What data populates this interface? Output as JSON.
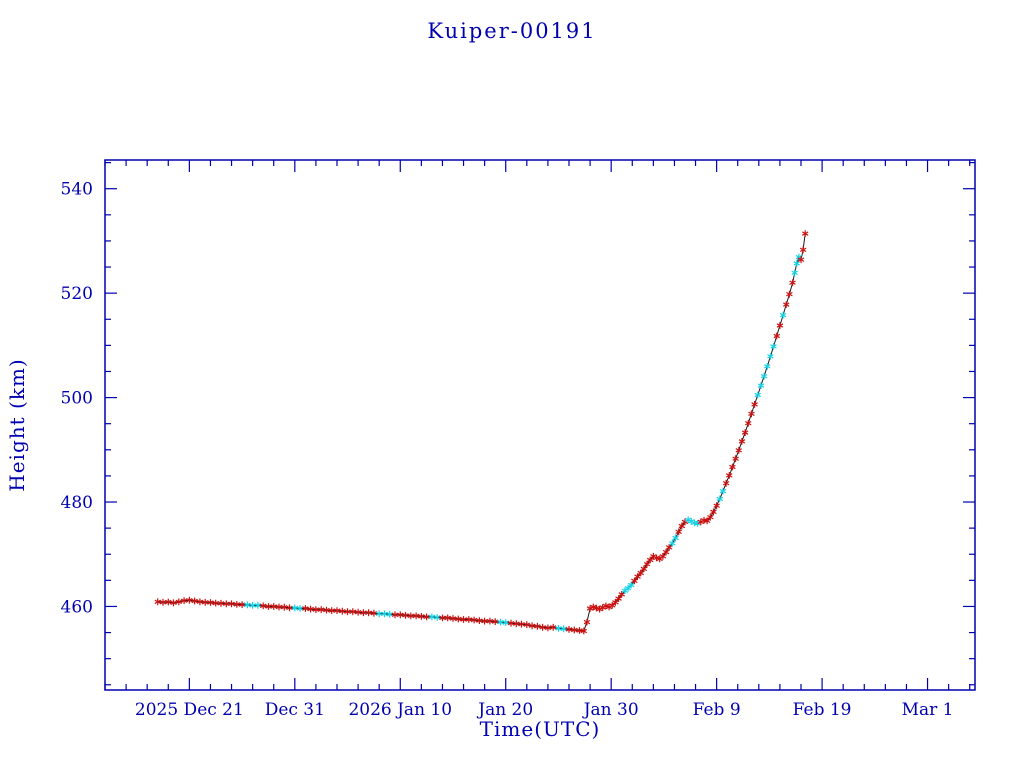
{
  "window": {
    "background": "#ffffff"
  },
  "chart_data": {
    "type": "line",
    "title": "Kuiper-00191",
    "xlabel": "Time(UTC)",
    "ylabel": "Height (km)",
    "axis_color": "#0000b0",
    "line_color": "#1a1a1a",
    "marker": "asterisk",
    "marker_colors": {
      "primary": "#cc1111",
      "secondary": "#17d2e6"
    },
    "x_unit": "days, 0 = 2025 Dec 13",
    "xlim": [
      0,
      82.5
    ],
    "ylim": [
      444,
      545.5
    ],
    "x_minor_step": 2,
    "y_minor_step": 5,
    "x_ticks": [
      {
        "pos": 8,
        "label": "2025 Dec 21"
      },
      {
        "pos": 18,
        "label": "Dec 31"
      },
      {
        "pos": 28,
        "label": "2026 Jan 10"
      },
      {
        "pos": 38,
        "label": "Jan 20"
      },
      {
        "pos": 48,
        "label": "Jan 30"
      },
      {
        "pos": 58,
        "label": "Feb 9"
      },
      {
        "pos": 68,
        "label": "Feb 19"
      },
      {
        "pos": 78,
        "label": "Mar 1"
      }
    ],
    "y_ticks": [
      {
        "pos": 460,
        "label": "460"
      },
      {
        "pos": 480,
        "label": "480"
      },
      {
        "pos": 500,
        "label": "500"
      },
      {
        "pos": 520,
        "label": "520"
      },
      {
        "pos": 540,
        "label": "540"
      }
    ],
    "points": [
      [
        5.0,
        460.9,
        0
      ],
      [
        5.5,
        460.8,
        0
      ],
      [
        6.0,
        460.85,
        0
      ],
      [
        6.5,
        460.7,
        0
      ],
      [
        7.0,
        460.9,
        0
      ],
      [
        7.5,
        461.1,
        0
      ],
      [
        8.0,
        461.2,
        0
      ],
      [
        8.5,
        461.05,
        0
      ],
      [
        9.0,
        460.9,
        0
      ],
      [
        9.5,
        460.8,
        0
      ],
      [
        10.0,
        460.75,
        0
      ],
      [
        10.5,
        460.65,
        0
      ],
      [
        11.0,
        460.6,
        0
      ],
      [
        11.5,
        460.5,
        0
      ],
      [
        12.0,
        460.5,
        0
      ],
      [
        12.5,
        460.4,
        0
      ],
      [
        13.0,
        460.35,
        0
      ],
      [
        13.5,
        460.3,
        1
      ],
      [
        14.0,
        460.2,
        1
      ],
      [
        14.5,
        460.2,
        1
      ],
      [
        15.0,
        460.1,
        0
      ],
      [
        15.5,
        460.0,
        0
      ],
      [
        16.0,
        460.0,
        0
      ],
      [
        16.5,
        459.9,
        0
      ],
      [
        17.0,
        459.85,
        0
      ],
      [
        17.5,
        459.75,
        0
      ],
      [
        18.0,
        459.7,
        1
      ],
      [
        18.5,
        459.6,
        1
      ],
      [
        19.0,
        459.6,
        0
      ],
      [
        19.5,
        459.5,
        0
      ],
      [
        20.0,
        459.4,
        0
      ],
      [
        20.5,
        459.4,
        0
      ],
      [
        21.0,
        459.3,
        0
      ],
      [
        21.5,
        459.2,
        0
      ],
      [
        22.0,
        459.2,
        0
      ],
      [
        22.5,
        459.1,
        0
      ],
      [
        23.0,
        459.0,
        0
      ],
      [
        23.5,
        459.0,
        0
      ],
      [
        24.0,
        458.9,
        0
      ],
      [
        24.5,
        458.8,
        0
      ],
      [
        25.0,
        458.8,
        0
      ],
      [
        25.5,
        458.7,
        0
      ],
      [
        26.0,
        458.6,
        1
      ],
      [
        26.5,
        458.6,
        1
      ],
      [
        27.0,
        458.5,
        1
      ],
      [
        27.5,
        458.4,
        0
      ],
      [
        28.0,
        458.4,
        0
      ],
      [
        28.5,
        458.3,
        0
      ],
      [
        29.0,
        458.2,
        0
      ],
      [
        29.5,
        458.2,
        0
      ],
      [
        30.0,
        458.1,
        0
      ],
      [
        30.5,
        458.0,
        0
      ],
      [
        31.0,
        458.0,
        1
      ],
      [
        31.5,
        457.9,
        1
      ],
      [
        32.0,
        457.8,
        0
      ],
      [
        32.5,
        457.8,
        0
      ],
      [
        33.0,
        457.7,
        0
      ],
      [
        33.5,
        457.6,
        0
      ],
      [
        34.0,
        457.5,
        0
      ],
      [
        34.5,
        457.5,
        0
      ],
      [
        35.0,
        457.4,
        0
      ],
      [
        35.5,
        457.3,
        0
      ],
      [
        36.0,
        457.2,
        0
      ],
      [
        36.5,
        457.2,
        0
      ],
      [
        37.0,
        457.1,
        0
      ],
      [
        37.5,
        457.0,
        1
      ],
      [
        38.0,
        456.9,
        1
      ],
      [
        38.5,
        456.8,
        0
      ],
      [
        39.0,
        456.7,
        0
      ],
      [
        39.5,
        456.6,
        0
      ],
      [
        40.0,
        456.5,
        0
      ],
      [
        40.5,
        456.3,
        0
      ],
      [
        41.0,
        456.2,
        0
      ],
      [
        41.5,
        456.0,
        0
      ],
      [
        42.0,
        455.9,
        0
      ],
      [
        42.5,
        456.0,
        0
      ],
      [
        43.0,
        455.8,
        1
      ],
      [
        43.5,
        455.7,
        1
      ],
      [
        44.0,
        455.6,
        0
      ],
      [
        44.5,
        455.5,
        0
      ],
      [
        45.0,
        455.4,
        0
      ],
      [
        45.4,
        455.3,
        0
      ],
      [
        45.7,
        457.0,
        0
      ],
      [
        46.0,
        459.6,
        0
      ],
      [
        46.3,
        459.9,
        0
      ],
      [
        46.6,
        459.7,
        0
      ],
      [
        46.9,
        459.5,
        0
      ],
      [
        47.2,
        459.8,
        0
      ],
      [
        47.5,
        460.1,
        0
      ],
      [
        47.8,
        459.9,
        0
      ],
      [
        48.1,
        460.2,
        0
      ],
      [
        48.4,
        460.8,
        0
      ],
      [
        48.7,
        461.5,
        0
      ],
      [
        49.0,
        462.3,
        0
      ],
      [
        49.3,
        463.0,
        1
      ],
      [
        49.6,
        463.5,
        1
      ],
      [
        49.9,
        464.1,
        1
      ],
      [
        50.2,
        464.9,
        0
      ],
      [
        50.5,
        465.7,
        0
      ],
      [
        50.8,
        466.4,
        0
      ],
      [
        51.1,
        467.2,
        0
      ],
      [
        51.4,
        468.1,
        0
      ],
      [
        51.7,
        468.9,
        0
      ],
      [
        52.0,
        469.6,
        0
      ],
      [
        52.3,
        469.3,
        0
      ],
      [
        52.6,
        469.1,
        0
      ],
      [
        52.9,
        469.6,
        0
      ],
      [
        53.2,
        470.4,
        0
      ],
      [
        53.5,
        471.3,
        0
      ],
      [
        53.8,
        472.1,
        1
      ],
      [
        54.1,
        473.1,
        1
      ],
      [
        54.4,
        474.3,
        0
      ],
      [
        54.7,
        475.4,
        0
      ],
      [
        55.0,
        476.2,
        0
      ],
      [
        55.3,
        476.6,
        1
      ],
      [
        55.6,
        476.3,
        1
      ],
      [
        55.9,
        476.0,
        1
      ],
      [
        56.2,
        475.9,
        1
      ],
      [
        56.5,
        476.2,
        0
      ],
      [
        56.8,
        476.5,
        0
      ],
      [
        57.1,
        476.4,
        0
      ],
      [
        57.4,
        477.1,
        0
      ],
      [
        57.7,
        478.1,
        0
      ],
      [
        58.0,
        479.3,
        0
      ],
      [
        58.3,
        480.6,
        1
      ],
      [
        58.6,
        482.1,
        1
      ],
      [
        58.9,
        483.6,
        0
      ],
      [
        59.2,
        485.1,
        0
      ],
      [
        59.5,
        486.7,
        0
      ],
      [
        59.8,
        488.3,
        0
      ],
      [
        60.1,
        489.9,
        0
      ],
      [
        60.4,
        491.6,
        0
      ],
      [
        60.7,
        493.3,
        0
      ],
      [
        61.0,
        495.1,
        0
      ],
      [
        61.3,
        496.9,
        0
      ],
      [
        61.6,
        498.7,
        0
      ],
      [
        61.9,
        500.5,
        1
      ],
      [
        62.2,
        502.3,
        1
      ],
      [
        62.5,
        504.1,
        1
      ],
      [
        62.8,
        506.0,
        1
      ],
      [
        63.1,
        507.9,
        1
      ],
      [
        63.4,
        509.8,
        1
      ],
      [
        63.7,
        511.8,
        0
      ],
      [
        64.0,
        513.8,
        0
      ],
      [
        64.3,
        515.8,
        1
      ],
      [
        64.6,
        517.8,
        0
      ],
      [
        64.9,
        519.8,
        0
      ],
      [
        65.2,
        522.0,
        0
      ],
      [
        65.4,
        523.9,
        1
      ],
      [
        65.6,
        525.7,
        1
      ],
      [
        65.8,
        526.9,
        1
      ],
      [
        66.0,
        526.4,
        0
      ],
      [
        66.2,
        528.3,
        0
      ],
      [
        66.4,
        531.4,
        0
      ]
    ]
  }
}
